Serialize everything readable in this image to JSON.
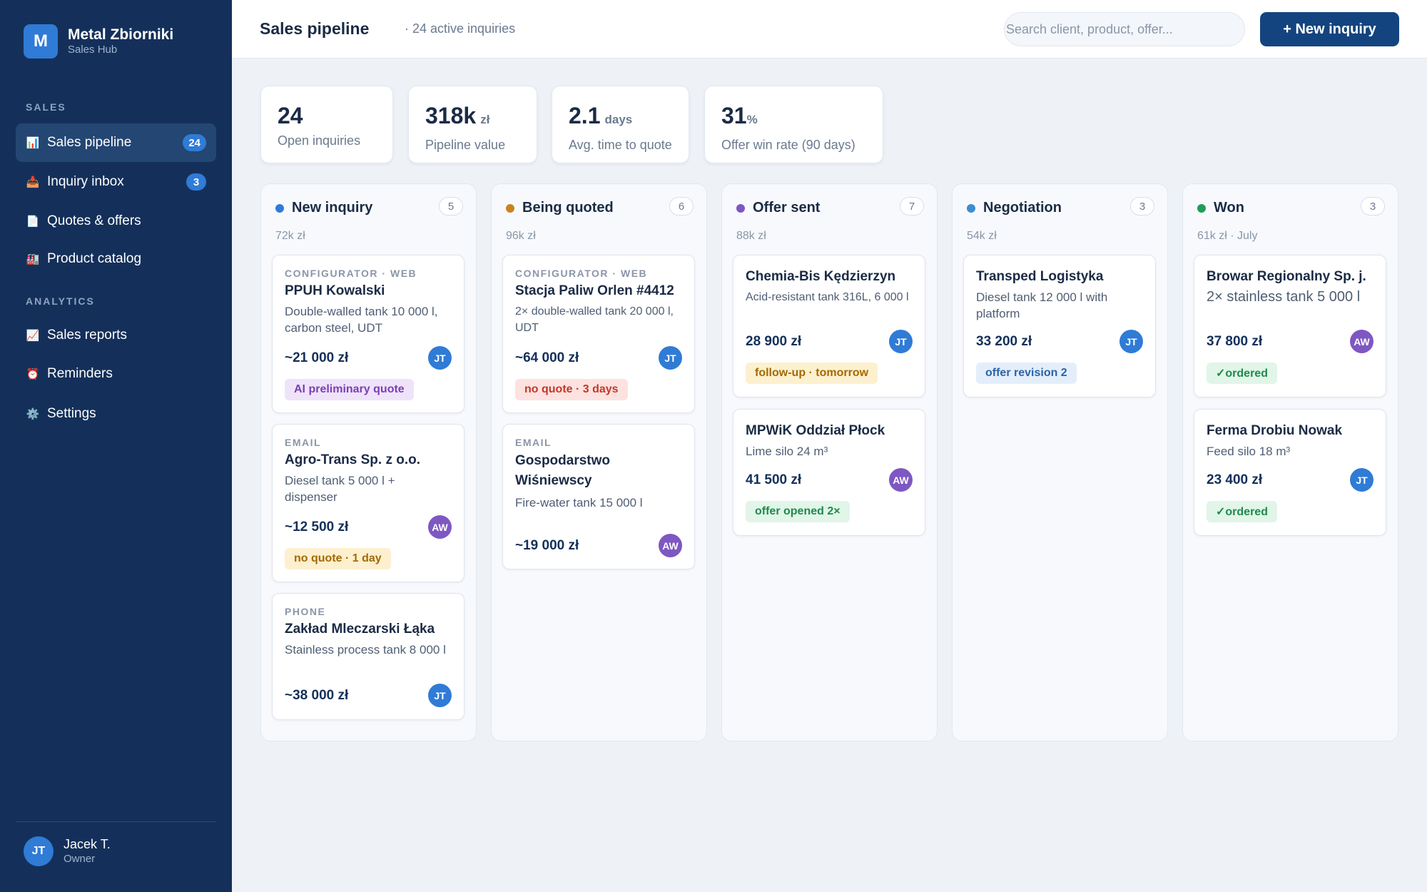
{
  "brand": {
    "logo": "M",
    "name": "Metal Zbiorniki",
    "subtitle": "Sales Hub"
  },
  "sidebar": {
    "sections": [
      "SALES",
      "ANALYTICS"
    ],
    "items": [
      {
        "label": "Sales pipeline",
        "icon": "bar-chart-icon",
        "glyph": "📊",
        "badge": "24",
        "active": true
      },
      {
        "label": "Inquiry inbox",
        "icon": "inbox-tray-icon",
        "glyph": "📥",
        "badge": "3"
      },
      {
        "label": "Quotes & offers",
        "icon": "document-icon",
        "glyph": "📄"
      },
      {
        "label": "Product catalog",
        "icon": "factory-icon",
        "glyph": "🏭"
      },
      {
        "label": "Sales reports",
        "icon": "line-chart-icon",
        "glyph": "📈"
      },
      {
        "label": "Reminders",
        "icon": "alarm-clock-icon",
        "glyph": "⏰"
      },
      {
        "label": "Settings",
        "icon": "gear-icon",
        "glyph": "⚙️"
      }
    ]
  },
  "user": {
    "initials": "JT",
    "name": "Jacek T.",
    "role": "Owner"
  },
  "header": {
    "title": "Sales pipeline",
    "subtitle": "· 24 active inquiries",
    "search_placeholder": "Search client, product, offer...",
    "new_button": "+ New inquiry"
  },
  "stats": [
    {
      "value": "24",
      "unit": "",
      "label": "Open inquiries"
    },
    {
      "value": "318k",
      "unit": "zł",
      "label": "Pipeline value"
    },
    {
      "value": "2.1",
      "unit": "days",
      "label": "Avg. time to quote"
    },
    {
      "value": "31",
      "unit": "%",
      "label": "Offer win rate (90 days)"
    }
  ],
  "columns": [
    {
      "title": "New inquiry",
      "count": "5",
      "sum": "72k zł",
      "dot": "#2f7bd6",
      "cards": [
        {
          "source": "CONFIGURATOR · WEB",
          "client": "PPUH Kowalski",
          "desc": "Double-walled tank 10 000 l, carbon steel, UDT",
          "price": "~21 000 zł",
          "assignee": "JT",
          "tag": "AI preliminary quote",
          "tag_style": "purple"
        },
        {
          "source": "EMAIL",
          "client": "Agro-Trans Sp. z o.o.",
          "desc": "Diesel tank 5 000 l + dispenser",
          "price": "~12 500 zł",
          "assignee": "AW",
          "tag": "no quote · 1 day",
          "tag_style": "amber"
        },
        {
          "source": "PHONE",
          "client": "Zakład Mleczarski Łąka",
          "desc": "Stainless process tank 8 000 l",
          "price": "~38 000 zł",
          "assignee": "JT"
        }
      ]
    },
    {
      "title": "Being quoted",
      "count": "6",
      "sum": "96k zł",
      "dot": "#c9821e",
      "cards": [
        {
          "source": "CONFIGURATOR · WEB",
          "client": "Stacja Paliw Orlen #4412",
          "desc": "2× double-walled tank 20 000 l, UDT",
          "price": "~64 000 zł",
          "assignee": "JT",
          "tag": "no quote · 3 days",
          "tag_style": "red"
        },
        {
          "source": "EMAIL",
          "client": "Gospodarstwo Wiśniewscy",
          "desc": "Fire-water tank 15 000 l",
          "price": "~19 000 zł",
          "assignee": "AW"
        }
      ]
    },
    {
      "title": "Offer sent",
      "count": "7",
      "sum": "88k zł",
      "dot": "#7e57c2",
      "cards": [
        {
          "client": "Chemia-Bis Kędzierzyn",
          "desc": "Acid-resistant tank 316L, 6 000 l",
          "price": "28 900 zł",
          "assignee": "JT",
          "tag": "follow-up · tomorrow",
          "tag_style": "amber"
        },
        {
          "client": "MPWiK Oddział Płock",
          "desc": "Lime silo 24 m³",
          "price": "41 500 zł",
          "assignee": "AW",
          "tag": "offer opened 2×",
          "tag_style": "green"
        }
      ]
    },
    {
      "title": "Negotiation",
      "count": "3",
      "sum": "54k zł",
      "dot": "#3a8fd0",
      "cards": [
        {
          "client": "Transped Logistyka",
          "desc": "Diesel tank 12 000 l with platform",
          "price": "33 200 zł",
          "assignee": "JT",
          "tag": "offer revision 2",
          "tag_style": "blue"
        }
      ]
    },
    {
      "title": "Won",
      "count": "3",
      "sum": "61k zł · July",
      "dot": "#1f9d5a",
      "cards": [
        {
          "client": "Browar Regionalny Sp. j.",
          "desc": "2× stainless tank 5 000 l",
          "price": "37 800 zł",
          "assignee": "AW",
          "tag": "✓ordered",
          "tag_style": "green"
        },
        {
          "client": "Ferma Drobiu Nowak",
          "desc": "Feed silo 18 m³",
          "price": "23 400 zł",
          "assignee": "JT",
          "tag": "✓ordered",
          "tag_style": "green"
        }
      ]
    }
  ],
  "colors": {
    "sidebar_bg": "#14305a",
    "accent": "#2f7bd6",
    "primary_button": "#14447f",
    "avatar_jt": "#2f7bd6",
    "avatar_aw": "#7e57c2"
  }
}
